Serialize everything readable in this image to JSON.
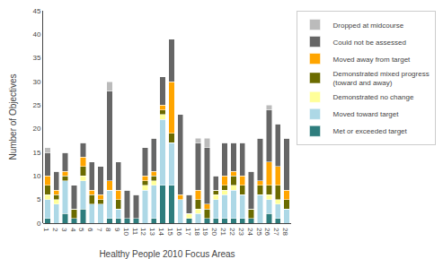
{
  "chart_data": {
    "type": "bar",
    "stacked": true,
    "categories": [
      "1",
      "2",
      "3",
      "4",
      "5",
      "6",
      "7",
      "8",
      "9",
      "10",
      "11",
      "12",
      "13",
      "14",
      "15",
      "16",
      "17",
      "18",
      "19",
      "20",
      "21",
      "22",
      "23",
      "24",
      "25",
      "26",
      "27",
      "28"
    ],
    "series": [
      {
        "name": "Met or exceeded target",
        "color": "#2e7d7d",
        "values": [
          1,
          0,
          2,
          1,
          3,
          0,
          0,
          1,
          1,
          1,
          1,
          0,
          1,
          8,
          8,
          0,
          1,
          0,
          1,
          1,
          1,
          1,
          1,
          1,
          0,
          2,
          1,
          0
        ]
      },
      {
        "name": "Moved toward target",
        "color": "#add8e6",
        "values": [
          4,
          4,
          7,
          0,
          6,
          4,
          4,
          6,
          2,
          0,
          0,
          7,
          7,
          14,
          9,
          5,
          0,
          2,
          0,
          4,
          5,
          6,
          5,
          0,
          6,
          3,
          3,
          3
        ]
      },
      {
        "name": "Demonstrated no change",
        "color": "#ffff99",
        "values": [
          1,
          1,
          0,
          0,
          1,
          0,
          0,
          0,
          0,
          0,
          0,
          1,
          1,
          1,
          0,
          0,
          1,
          1,
          0,
          1,
          1,
          1,
          0,
          0,
          0,
          1,
          1,
          0
        ]
      },
      {
        "name": "Demonstrated mixed progress\n(toward and away)",
        "color": "#6b6b00",
        "values": [
          2,
          1,
          1,
          2,
          2,
          2,
          1,
          0,
          2,
          0,
          0,
          1,
          1,
          1,
          2,
          0,
          0,
          2,
          2,
          1,
          1,
          2,
          2,
          2,
          2,
          2,
          3,
          2
        ]
      },
      {
        "name": "Moved away from target",
        "color": "#ffa500",
        "values": [
          2,
          1,
          1,
          0,
          2,
          1,
          1,
          2,
          2,
          0,
          0,
          1,
          1,
          1,
          11,
          1,
          0,
          2,
          1,
          0,
          2,
          1,
          2,
          0,
          1,
          5,
          4,
          2
        ]
      },
      {
        "name": "Could not be assessed",
        "color": "#666666",
        "values": [
          5,
          4,
          4,
          5,
          3,
          6,
          6,
          19,
          6,
          6,
          5,
          6,
          7,
          6,
          9,
          17,
          4,
          10,
          12,
          3,
          7,
          6,
          7,
          8,
          9,
          11,
          9,
          11
        ]
      },
      {
        "name": "Dropped at midcourse",
        "color": "#bbbbbb",
        "values": [
          1,
          0,
          0,
          0,
          0,
          0,
          0,
          2,
          0,
          0,
          0,
          0,
          0,
          0,
          0,
          0,
          0,
          1,
          2,
          0,
          0,
          0,
          0,
          0,
          0,
          1,
          0,
          0
        ]
      }
    ],
    "xlabel": "Healthy People 2010 Focus Areas",
    "ylabel": "Number of Objectives",
    "ylim": [
      0,
      45
    ],
    "yticks": [
      0,
      5,
      10,
      15,
      20,
      25,
      30,
      35,
      40,
      45
    ],
    "grid": false,
    "legend": "upper right"
  }
}
